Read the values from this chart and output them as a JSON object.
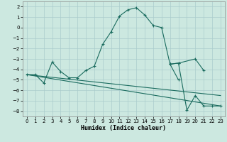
{
  "xlabel": "Humidex (Indice chaleur)",
  "bg_color": "#cce8e0",
  "grid_color": "#aacccc",
  "line_color": "#1a6b5e",
  "xlim": [
    -0.5,
    23.5
  ],
  "ylim": [
    -8.5,
    2.5
  ],
  "yticks": [
    2,
    1,
    0,
    -1,
    -2,
    -3,
    -4,
    -5,
    -6,
    -7,
    -8
  ],
  "xticks": [
    0,
    1,
    2,
    3,
    4,
    5,
    6,
    7,
    8,
    9,
    10,
    11,
    12,
    13,
    14,
    15,
    16,
    17,
    18,
    19,
    20,
    21,
    22,
    23
  ],
  "series1": {
    "x": [
      0,
      1,
      2,
      3,
      4,
      5,
      6,
      7,
      8,
      9,
      10,
      11,
      12,
      13,
      14,
      15,
      16,
      17,
      18
    ],
    "y": [
      -4.5,
      -4.5,
      -5.3,
      -3.3,
      -4.2,
      -4.8,
      -4.8,
      -4.1,
      -3.7,
      -1.6,
      -0.4,
      1.1,
      1.7,
      1.9,
      1.2,
      0.2,
      0.0,
      -3.5,
      -5.0
    ]
  },
  "series2": {
    "x": [
      0,
      23
    ],
    "y": [
      -4.5,
      -7.5
    ]
  },
  "series3": {
    "x": [
      0,
      23
    ],
    "y": [
      -4.5,
      -6.5
    ]
  },
  "series4": {
    "x": [
      17,
      18,
      19,
      20,
      21,
      22,
      23
    ],
    "y": [
      -3.5,
      -3.4,
      -7.9,
      -6.5,
      -7.5,
      -7.5,
      -7.5
    ]
  },
  "series5": {
    "x": [
      17,
      18,
      20,
      21
    ],
    "y": [
      -3.5,
      -3.4,
      -3.0,
      -4.1
    ]
  }
}
